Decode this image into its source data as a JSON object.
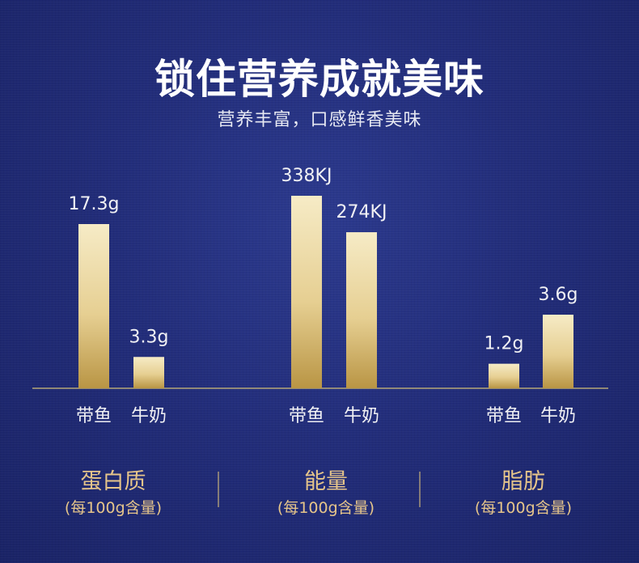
{
  "header": {
    "title": "锁住营养成就美味",
    "subtitle": "营养丰富，口感鲜香美味"
  },
  "colors": {
    "background": "#222d7a",
    "bar_top": "#f6ebc6",
    "bar_bottom": "#b99544",
    "group_text": "#e6c58a",
    "text": "#f1f1f4"
  },
  "chart_data": {
    "type": "bar",
    "title": "",
    "grid": false,
    "groups": [
      {
        "name": "蛋白质",
        "unit_note": "(每100g含量)",
        "categories": [
          "带鱼",
          "牛奶"
        ],
        "values": [
          17.3,
          3.3
        ],
        "labels": [
          "17.3g",
          "3.3g"
        ]
      },
      {
        "name": "能量",
        "unit_note": "(每100g含量)",
        "categories": [
          "带鱼",
          "牛奶"
        ],
        "values": [
          338,
          274
        ],
        "labels": [
          "338KJ",
          "274KJ"
        ]
      },
      {
        "name": "脂肪",
        "unit_note": "(每100g含量)",
        "categories": [
          "带鱼",
          "牛奶"
        ],
        "values": [
          1.2,
          3.6
        ],
        "labels": [
          "1.2g",
          "3.6g"
        ]
      }
    ]
  }
}
